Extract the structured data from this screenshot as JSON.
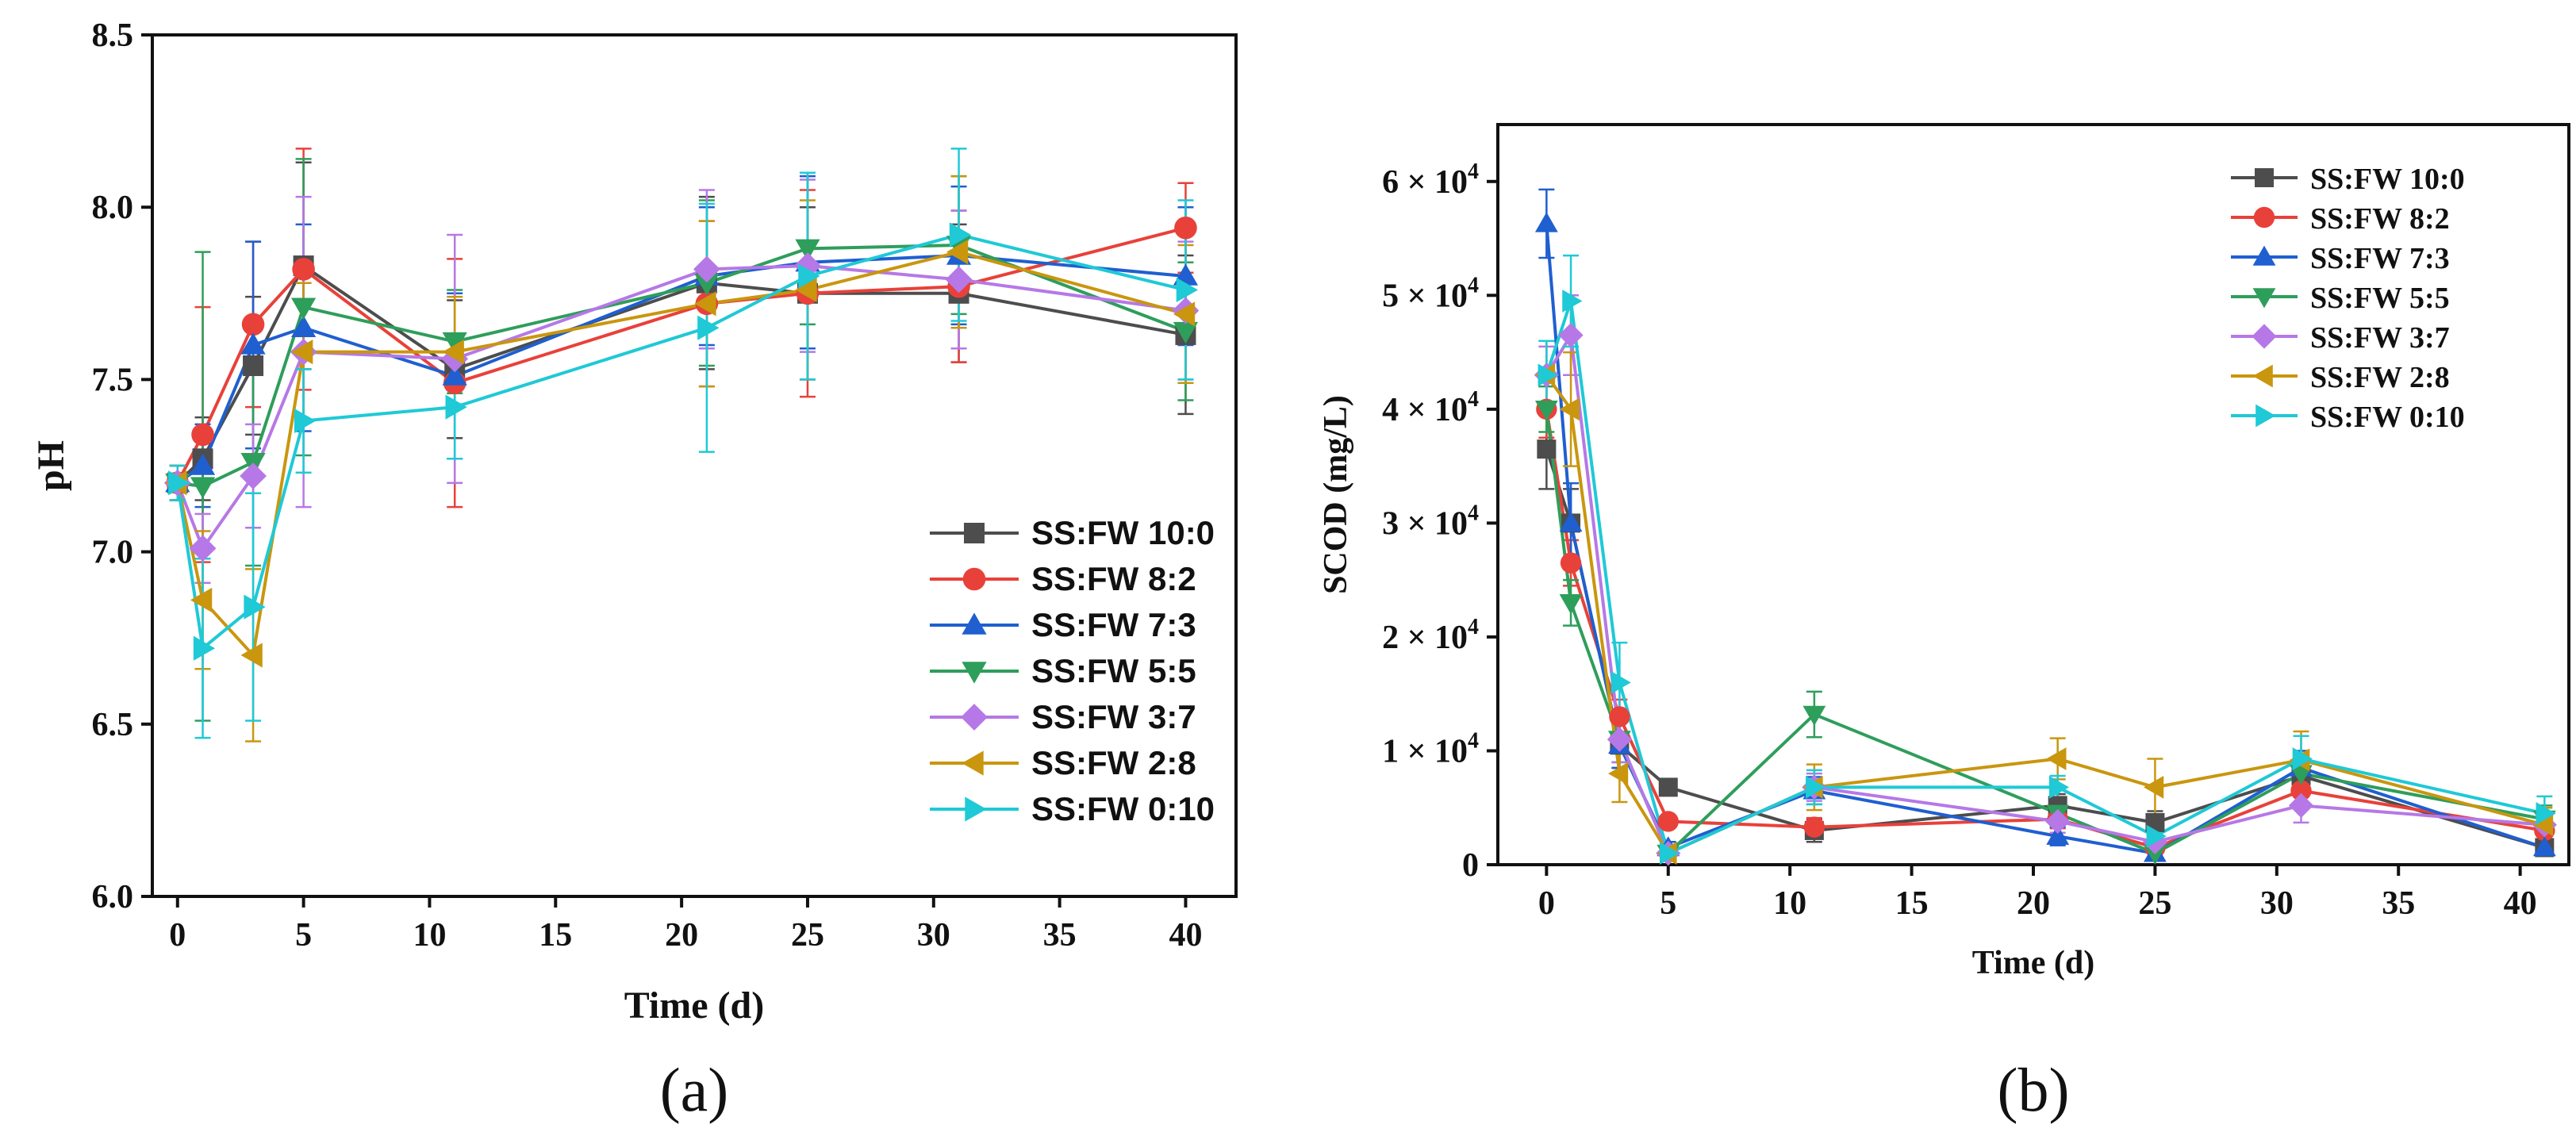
{
  "series_meta": [
    {
      "name": "SS:FW 10:0",
      "color": "#4d4d4d",
      "marker": "square"
    },
    {
      "name": "SS:FW 8:2",
      "color": "#e8413a",
      "marker": "circle"
    },
    {
      "name": "SS:FW 7:3",
      "color": "#1f5fd0",
      "marker": "triangle-up"
    },
    {
      "name": "SS:FW 5:5",
      "color": "#2e9e5b",
      "marker": "triangle-down"
    },
    {
      "name": "SS:FW 3:7",
      "color": "#b678e6",
      "marker": "diamond"
    },
    {
      "name": "SS:FW 2:8",
      "color": "#c9960e",
      "marker": "triangle-left"
    },
    {
      "name": "SS:FW 0:10",
      "color": "#1fc9d6",
      "marker": "triangle-right"
    }
  ],
  "chart_data": [
    {
      "panel_label": "(a)",
      "type": "line",
      "title": "",
      "xlabel": "Time (d)",
      "ylabel": "pH",
      "xlim": [
        -1,
        42
      ],
      "ylim": [
        6.0,
        8.5
      ],
      "xticks": [
        0,
        5,
        10,
        15,
        20,
        25,
        30,
        35,
        40
      ],
      "yticks": [
        6.0,
        6.5,
        7.0,
        7.5,
        8.0,
        8.5
      ],
      "ytick_labels": [
        "6.0",
        "6.5",
        "7.0",
        "7.5",
        "8.0",
        "8.5"
      ],
      "legend_position": "bottom-right",
      "x": [
        0,
        1,
        3,
        5,
        11,
        21,
        25,
        31,
        40
      ],
      "series": [
        {
          "name": "SS:FW 10:0",
          "values": [
            7.2,
            7.27,
            7.54,
            7.83,
            7.53,
            7.78,
            7.75,
            7.75,
            7.63
          ],
          "errors": [
            0.05,
            0.12,
            0.2,
            0.3,
            0.2,
            0.25,
            0.25,
            0.2,
            0.23
          ]
        },
        {
          "name": "SS:FW 8:2",
          "values": [
            7.2,
            7.34,
            7.66,
            7.82,
            7.49,
            7.72,
            7.75,
            7.77,
            7.94
          ],
          "errors": [
            0.05,
            0.37,
            0.24,
            0.35,
            0.36,
            0.24,
            0.3,
            0.22,
            0.13
          ]
        },
        {
          "name": "SS:FW 7:3",
          "values": [
            7.2,
            7.25,
            7.6,
            7.65,
            7.51,
            7.8,
            7.84,
            7.86,
            7.8
          ],
          "errors": [
            0.05,
            0.12,
            0.3,
            0.3,
            0.24,
            0.2,
            0.25,
            0.2,
            0.2
          ]
        },
        {
          "name": "SS:FW 5:5",
          "values": [
            7.2,
            7.19,
            7.26,
            7.71,
            7.61,
            7.78,
            7.88,
            7.89,
            7.64
          ],
          "errors": [
            0.05,
            0.68,
            0.3,
            0.43,
            0.15,
            0.24,
            0.22,
            0.2,
            0.2
          ]
        },
        {
          "name": "SS:FW 3:7",
          "values": [
            7.2,
            7.01,
            7.22,
            7.58,
            7.56,
            7.82,
            7.83,
            7.79,
            7.7
          ],
          "errors": [
            0.05,
            0.1,
            0.15,
            0.45,
            0.36,
            0.23,
            0.25,
            0.2,
            0.2
          ]
        },
        {
          "name": "SS:FW 2:8",
          "values": [
            7.2,
            6.86,
            6.7,
            7.58,
            7.58,
            7.72,
            7.76,
            7.87,
            7.69
          ],
          "errors": [
            0.05,
            0.2,
            0.25,
            0.2,
            0.16,
            0.24,
            0.26,
            0.22,
            0.2
          ]
        },
        {
          "name": "SS:FW 0:10",
          "values": [
            7.2,
            6.72,
            6.84,
            7.38,
            7.42,
            7.65,
            7.8,
            7.92,
            7.76
          ],
          "errors": [
            0.05,
            0.26,
            0.33,
            0.15,
            0.15,
            0.36,
            0.3,
            0.25,
            0.26
          ]
        }
      ]
    },
    {
      "panel_label": "(b)",
      "type": "line",
      "title": "",
      "xlabel": "Time (d)",
      "ylabel": "SCOD (mg/L)",
      "xlim": [
        -2,
        42
      ],
      "ylim": [
        0,
        65000
      ],
      "xticks": [
        0,
        5,
        10,
        15,
        20,
        25,
        30,
        35,
        40
      ],
      "yticks": [
        0,
        10000,
        20000,
        30000,
        40000,
        50000,
        60000
      ],
      "ytick_mantissa": [
        "0",
        "1 × 10",
        "2 × 10",
        "3 × 10",
        "4 × 10",
        "5 × 10",
        "6 × 10"
      ],
      "ytick_exponent": [
        "",
        "4",
        "4",
        "4",
        "4",
        "4",
        "4"
      ],
      "legend_position": "top-right",
      "x": [
        0,
        1,
        3,
        5,
        11,
        21,
        25,
        31,
        41
      ],
      "series": [
        {
          "name": "SS:FW 10:0",
          "values": [
            36500,
            30000,
            10500,
            6800,
            3000,
            5200,
            3700,
            7800,
            1500
          ],
          "errors": [
            3500,
            3000,
            2000,
            500,
            1000,
            1000,
            1000,
            1000,
            500
          ]
        },
        {
          "name": "SS:FW 8:2",
          "values": [
            40000,
            26500,
            13000,
            3800,
            3300,
            4000,
            1500,
            6500,
            3000
          ],
          "errors": [
            2500,
            2000,
            1500,
            500,
            800,
            800,
            800,
            1500,
            800
          ]
        },
        {
          "name": "SS:FW 7:3",
          "values": [
            56300,
            30000,
            10500,
            1500,
            6500,
            2500,
            1000,
            8500,
            1500
          ],
          "errors": [
            3000,
            3500,
            2000,
            500,
            1200,
            800,
            500,
            1500,
            500
          ]
        },
        {
          "name": "SS:FW 5:5",
          "values": [
            40000,
            23000,
            11000,
            1000,
            13200,
            4500,
            1000,
            8000,
            4000
          ],
          "errors": [
            2000,
            2000,
            2000,
            500,
            2000,
            1000,
            500,
            1500,
            1200
          ]
        },
        {
          "name": "SS:FW 3:7",
          "values": [
            43000,
            46500,
            11000,
            1000,
            6800,
            3800,
            2000,
            5200,
            3500
          ],
          "errors": [
            2500,
            3500,
            2000,
            500,
            1200,
            1000,
            1000,
            1500,
            1000
          ]
        },
        {
          "name": "SS:FW 2:8",
          "values": [
            43000,
            40000,
            8000,
            1000,
            6800,
            9300,
            6800,
            9200,
            3500
          ],
          "errors": [
            3000,
            5000,
            2500,
            500,
            2000,
            1800,
            2500,
            2500,
            1500
          ]
        },
        {
          "name": "SS:FW 0:10",
          "values": [
            43000,
            49500,
            16000,
            1000,
            6800,
            6800,
            2500,
            9300,
            4500
          ],
          "errors": [
            3000,
            4000,
            3500,
            500,
            1500,
            1000,
            1500,
            2000,
            1500
          ]
        }
      ]
    }
  ]
}
